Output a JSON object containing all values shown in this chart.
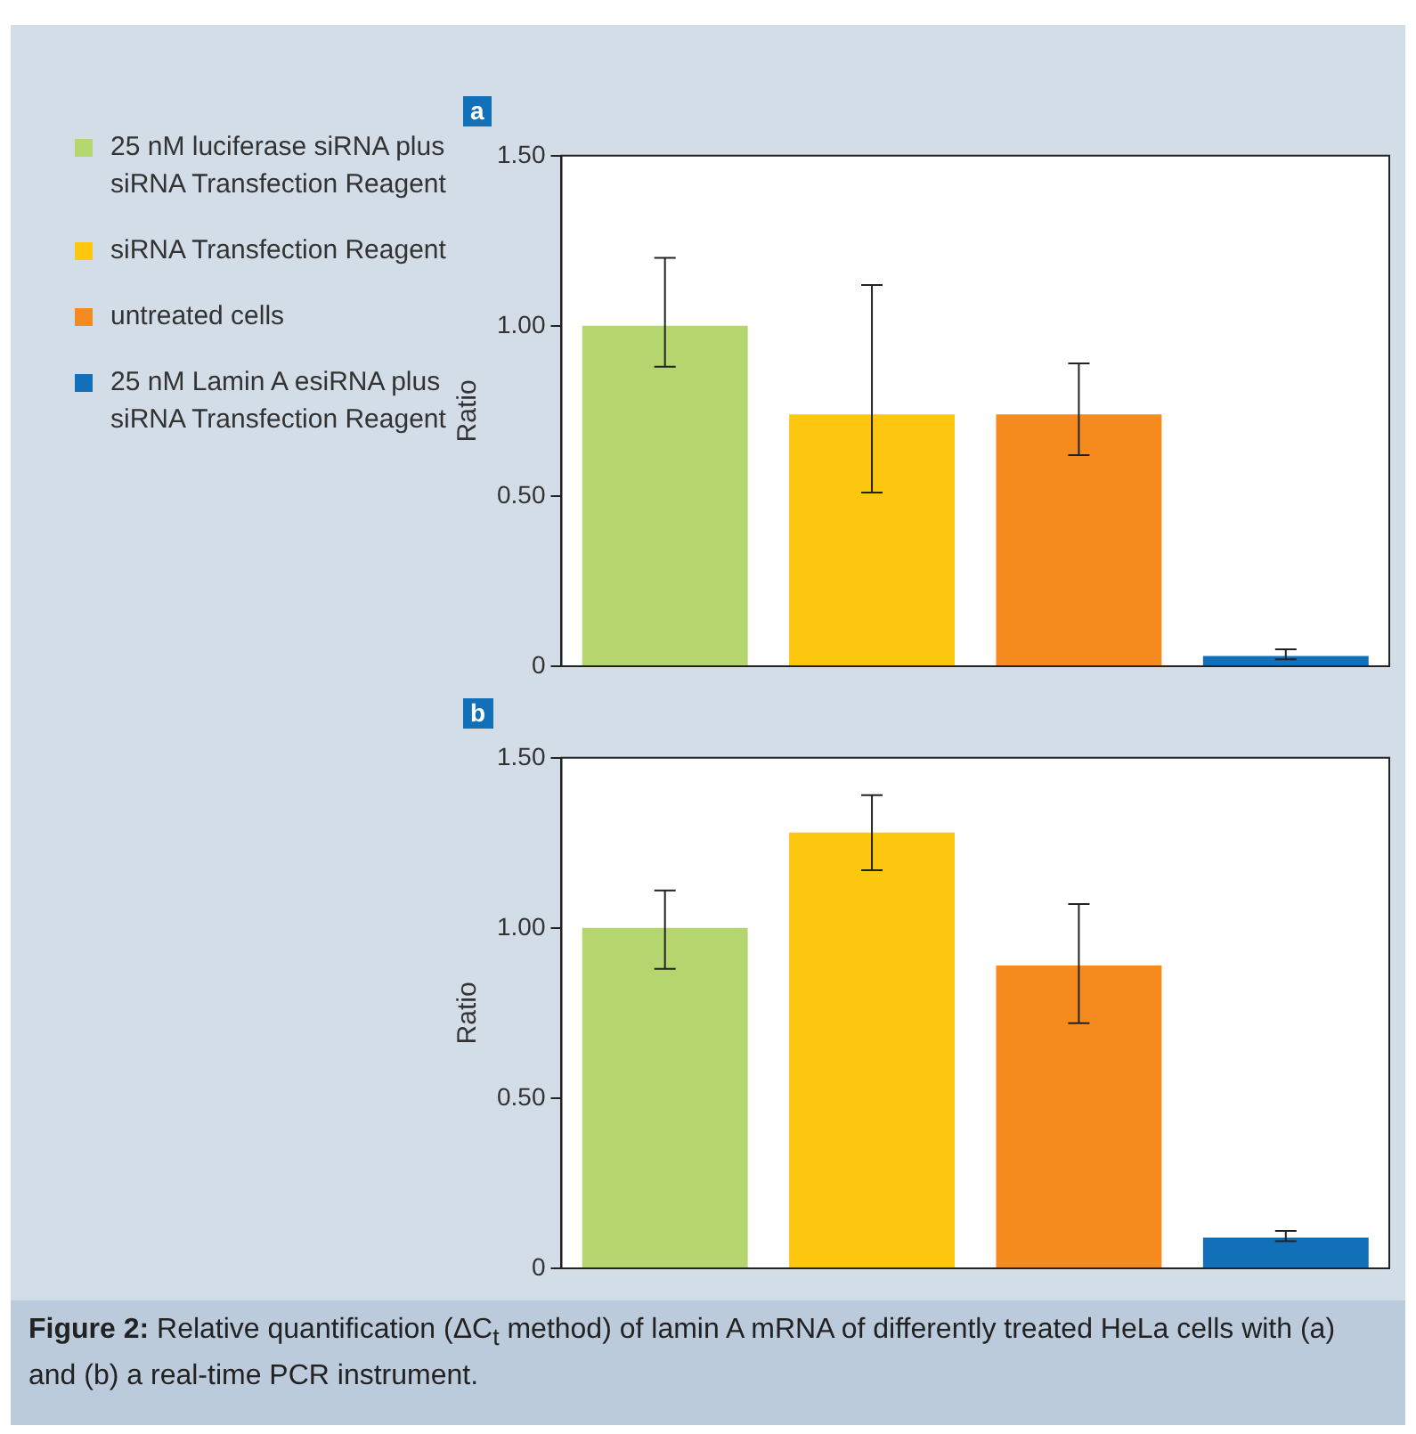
{
  "chart_data": [
    {
      "type": "bar",
      "title": "a",
      "ylabel": "Ratio",
      "categories": [
        null
      ],
      "ylim": [
        0,
        1.5
      ],
      "yticks": [
        0,
        {
          "value": 0.5,
          "label": "0.50"
        },
        {
          "value": 1,
          "label": "1.00"
        },
        {
          "value": 1.5,
          "label": "1.50"
        }
      ],
      "grid": false,
      "legend": "left",
      "tick_labels": "y",
      "series": [
        {
          "name": "25 nM luciferase siRNA plus siRNA Transfection Reagent",
          "color": "#b5d56f",
          "values": [
            1.0
          ],
          "errors": [
            [
              0.88,
              1.2
            ]
          ]
        },
        {
          "name": "siRNA Transfection Reagent",
          "color": "#fdc70f",
          "values": [
            0.74
          ],
          "errors": [
            [
              0.51,
              1.12
            ]
          ]
        },
        {
          "name": "untreated cells",
          "color": "#f58a1f",
          "values": [
            0.74
          ],
          "errors": [
            [
              0.62,
              0.89
            ]
          ]
        },
        {
          "name": "25 nM Lamin A esiRNA plus siRNA Transfection Reagent",
          "color": "#1270b9",
          "values": [
            0.03
          ],
          "errors": [
            [
              0.02,
              0.05
            ]
          ]
        }
      ]
    },
    {
      "type": "bar",
      "title": "b",
      "ylabel": "Ratio",
      "categories": [
        null
      ],
      "ylim": [
        0,
        1.5
      ],
      "yticks": [
        0,
        {
          "value": 0.5,
          "label": "0.50"
        },
        {
          "value": 1,
          "label": "1.00"
        },
        {
          "value": 1.5,
          "label": "1.50"
        }
      ],
      "grid": false,
      "tick_labels": "y",
      "annotations": [
        "Figure 2: Relative quantification (ΔC$_{t}$ method) of lamin A mRNA of differently treated HeLa cells with (a) and (b) a real-time PCR instrument."
      ],
      "series": [
        {
          "color": "#b5d56f",
          "values": [
            1.0
          ],
          "errors": [
            [
              0.88,
              1.11
            ]
          ]
        },
        {
          "color": "#fdc70f",
          "values": [
            1.28
          ],
          "errors": [
            [
              1.17,
              1.39
            ]
          ]
        },
        {
          "color": "#f58a1f",
          "values": [
            0.89
          ],
          "errors": [
            [
              0.72,
              1.07
            ]
          ]
        },
        {
          "color": "#1270b9",
          "values": [
            0.09
          ],
          "errors": [
            [
              0.08,
              0.11
            ]
          ]
        }
      ]
    }
  ]
}
